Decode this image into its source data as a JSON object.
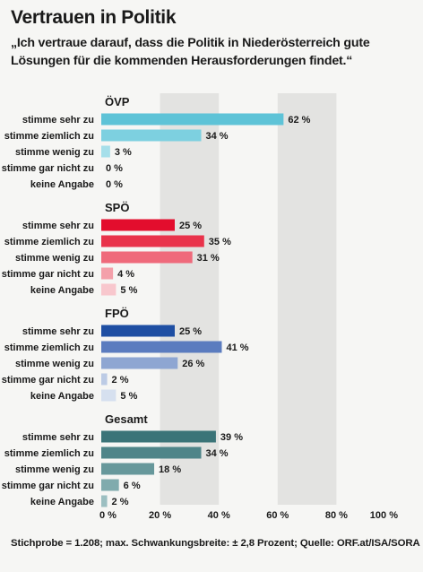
{
  "header": {
    "title": "Vertrauen in Politik",
    "subtitle": "„Ich vertraue darauf, dass die Politik in Niederösterreich gute Lösungen für die kommenden Herausforderungen findet.“"
  },
  "footer": {
    "source": "Stichprobe = 1.208; max. Schwankungsbreite: ± 2,8 Prozent; Quelle: ORF.at/ISA/SORA"
  },
  "chart_data": {
    "type": "bar",
    "orientation": "horizontal",
    "title": "Vertrauen in Politik",
    "categories": [
      "stimme sehr zu",
      "stimme ziemlich zu",
      "stimme wenig zu",
      "stimme gar nicht zu",
      "keine Angabe"
    ],
    "groups": [
      {
        "name": "ÖVP",
        "values": [
          62,
          34,
          3,
          0,
          0
        ],
        "colors": [
          "#5ec3d7",
          "#7dd0e0",
          "#a6dfea",
          "#cdeef4",
          "#e2f5f8"
        ]
      },
      {
        "name": "SPÖ",
        "values": [
          25,
          35,
          31,
          4,
          5
        ],
        "colors": [
          "#e30d2d",
          "#e9334b",
          "#ef6a7b",
          "#f4a0aa",
          "#f8c7cd"
        ]
      },
      {
        "name": "FPÖ",
        "values": [
          25,
          41,
          26,
          2,
          5
        ],
        "colors": [
          "#1f4fa3",
          "#5b7cbf",
          "#8ea6d2",
          "#bccbe5",
          "#d6e0ef"
        ]
      },
      {
        "name": "Gesamt",
        "values": [
          39,
          34,
          18,
          6,
          2
        ],
        "colors": [
          "#3b7478",
          "#4f8589",
          "#67989b",
          "#80abad",
          "#9cbfc1"
        ]
      }
    ],
    "value_suffix": " %",
    "xlim": [
      0,
      100
    ],
    "x_ticks": [
      "0 %",
      "20 %",
      "40 %",
      "60 %",
      "80 %",
      "100 %"
    ],
    "grid_bands": true,
    "legend": "none"
  }
}
